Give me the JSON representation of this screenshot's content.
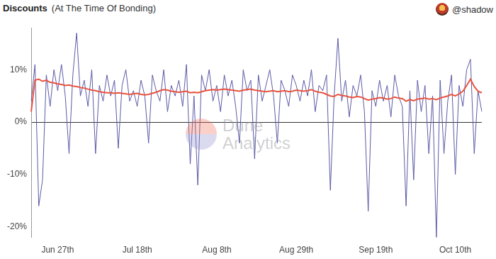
{
  "chart_data": {
    "type": "line",
    "title": "Discounts",
    "subtitle": "(At The Time Of Bonding)",
    "annotations": [
      "@shadow",
      "Dune Analytics"
    ],
    "categories": [
      null,
      null,
      null,
      null,
      null,
      null,
      null,
      "Jun 27th",
      null,
      null,
      null,
      null,
      null,
      null,
      null,
      null,
      null,
      null,
      null,
      null,
      null,
      null,
      null,
      null,
      null,
      null,
      null,
      null,
      "Jul 18th",
      null,
      null,
      null,
      null,
      null,
      null,
      null,
      null,
      null,
      null,
      null,
      null,
      null,
      null,
      null,
      null,
      null,
      null,
      null,
      null,
      "Aug 8th",
      null,
      null,
      null,
      null,
      null,
      null,
      null,
      null,
      null,
      null,
      null,
      null,
      null,
      null,
      null,
      null,
      null,
      null,
      null,
      null,
      "Aug 29th",
      null,
      null,
      null,
      null,
      null,
      null,
      null,
      null,
      null,
      null,
      null,
      null,
      null,
      null,
      null,
      null,
      null,
      null,
      null,
      null,
      "Sep 19th",
      null,
      null,
      null,
      null,
      null,
      null,
      null,
      null,
      null,
      null,
      null,
      null,
      null,
      null,
      null,
      null,
      null,
      null,
      null,
      null,
      "Oct 10th",
      null,
      null,
      null,
      null,
      null,
      null,
      null
    ],
    "series": [
      {
        "color": "#5c5aa6",
        "type": "line",
        "values": [
          4,
          11,
          -16,
          -11,
          9,
          3,
          10,
          6,
          11,
          5,
          -6,
          9,
          17,
          5,
          8,
          3,
          10,
          -6,
          7,
          4,
          9,
          5,
          8,
          -5,
          7,
          10,
          4,
          6,
          3,
          8,
          5,
          -4,
          9,
          6,
          4,
          10,
          2,
          7,
          5,
          8,
          3,
          11,
          -8,
          5,
          -12,
          9,
          6,
          10,
          4,
          7,
          2,
          9,
          5,
          8,
          3,
          -4,
          10,
          6,
          8,
          -7,
          9,
          4,
          7,
          10,
          5,
          -4,
          8,
          6,
          3,
          9,
          7,
          4,
          8,
          5,
          10,
          2,
          7,
          6,
          9,
          -13,
          5,
          16,
          4,
          8,
          1,
          7,
          5,
          9,
          2,
          -17,
          6,
          3,
          8,
          4,
          7,
          1,
          9,
          5,
          3,
          -16,
          6,
          -11,
          8,
          2,
          7,
          -6,
          5,
          -22,
          8,
          -6,
          4,
          9,
          -10,
          7,
          3,
          10,
          12,
          -6,
          6,
          2
        ]
      },
      {
        "color": "#e8533f",
        "type": "line",
        "values": [
          2,
          8,
          8.2,
          7.8,
          8,
          7.6,
          7.5,
          7.3,
          7.2,
          7,
          7.1,
          6.9,
          6.8,
          6.6,
          6.5,
          6.3,
          6.1,
          6,
          5.8,
          5.7,
          5.6,
          5.6,
          5.5,
          5.6,
          5.5,
          5.4,
          5.3,
          5.4,
          5.5,
          5.3,
          5.2,
          5.3,
          5.5,
          5.7,
          6,
          6.2,
          6.1,
          5.9,
          5.8,
          5.7,
          5.8,
          5.9,
          5.6,
          5.7,
          5.6,
          5.8,
          6,
          6.1,
          6.2,
          6.1,
          6.2,
          6.3,
          6.2,
          6.1,
          6,
          5.9,
          6.1,
          6.2,
          6.3,
          6.1,
          6,
          5.9,
          5.8,
          5.9,
          6,
          5.8,
          5.9,
          6,
          5.8,
          5.9,
          6.1,
          6,
          5.9,
          6,
          6.2,
          5.9,
          5.7,
          5.6,
          5.3,
          5,
          4.9,
          5.3,
          5.1,
          5,
          4.8,
          4.7,
          4.9,
          4.8,
          4.5,
          4.2,
          4.4,
          4.5,
          4.7,
          4.6,
          4.4,
          4.5,
          4.8,
          4.6,
          4.5,
          4,
          4.3,
          4.1,
          4.4,
          4.5,
          4.6,
          4.4,
          4.5,
          4.3,
          4.6,
          4.8,
          5,
          5.3,
          5,
          5.4,
          5.9,
          7,
          8.2,
          6.8,
          5.9,
          5.6
        ]
      }
    ],
    "ylim": [
      -22,
      18
    ],
    "yticks": [
      {
        "value": -20,
        "label": "-20%"
      },
      {
        "value": -10,
        "label": "-10%"
      },
      {
        "value": 0,
        "label": "0%"
      },
      {
        "value": 10,
        "label": "10%"
      }
    ]
  }
}
